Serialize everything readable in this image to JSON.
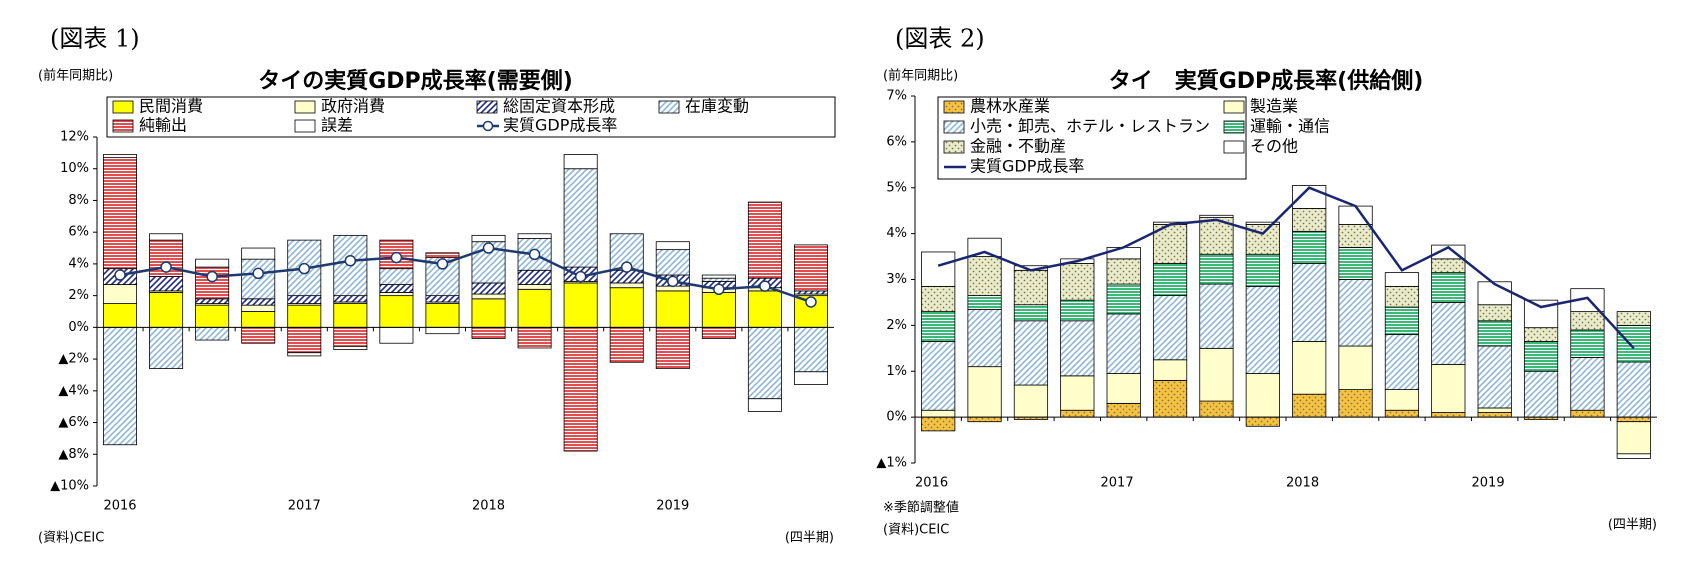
{
  "chart_data": [
    {
      "type": "bar",
      "stacked": true,
      "label": "(図表 1)",
      "y_unit_label": "(前年同期比)",
      "title": "タイの実質GDP成長率(需要側)",
      "source": "(資料)CEIC",
      "x_unit": "(四半期)",
      "categories": [
        "2016",
        null,
        null,
        null,
        "2017",
        null,
        null,
        null,
        "2018",
        null,
        null,
        null,
        "2019",
        null,
        null,
        null
      ],
      "ylim": [
        -10,
        12
      ],
      "yticks": [
        {
          "value": -10,
          "label": "▲10%"
        },
        {
          "value": -8,
          "label": "▲8%"
        },
        {
          "value": -6,
          "label": "▲6%"
        },
        {
          "value": -4,
          "label": "▲4%"
        },
        {
          "value": -2,
          "label": "▲2%"
        },
        {
          "value": 0,
          "label": "0%"
        },
        {
          "value": 2,
          "label": "2%"
        },
        {
          "value": 4,
          "label": "4%"
        },
        {
          "value": 6,
          "label": "6%"
        },
        {
          "value": 8,
          "label": "8%"
        },
        {
          "value": 10,
          "label": "10%"
        },
        {
          "value": 12,
          "label": "12%"
        }
      ],
      "series": [
        {
          "name": "民間消費",
          "color": "#ffff00",
          "pattern": "solid",
          "values": [
            1.5,
            2.2,
            1.4,
            1.0,
            1.4,
            1.5,
            2.0,
            1.5,
            1.8,
            2.4,
            2.8,
            2.5,
            2.3,
            2.2,
            2.3,
            2.0
          ]
        },
        {
          "name": "政府消費",
          "color": "#ffffcc",
          "pattern": "solid",
          "values": [
            1.2,
            0.1,
            0.1,
            0.4,
            0.1,
            0.1,
            0.2,
            0.1,
            0.3,
            0.3,
            0.1,
            0.3,
            0.3,
            0.3,
            0.2,
            0.1
          ]
        },
        {
          "name": "総固定資本形成",
          "color": "#1f2a8c",
          "pattern": "diagonal",
          "values": [
            1.0,
            0.9,
            0.3,
            0.4,
            0.5,
            0.4,
            0.5,
            0.4,
            0.7,
            0.9,
            0.9,
            0.8,
            0.7,
            0.4,
            0.6,
            0.2
          ]
        },
        {
          "name": "在庫変動",
          "color": "#8fb8dc",
          "pattern": "diagonal",
          "values": [
            -7.4,
            -2.6,
            -0.8,
            2.5,
            3.5,
            3.8,
            1.0,
            2.4,
            2.6,
            2.0,
            6.2,
            2.3,
            1.6,
            0.2,
            -4.5,
            -2.8
          ]
        },
        {
          "name": "純輸出",
          "color": "#e05050",
          "pattern": "horizontal",
          "values": [
            7.0,
            2.3,
            2.0,
            -1.0,
            -1.6,
            -1.2,
            1.8,
            0.3,
            -0.7,
            -1.3,
            -7.8,
            -2.2,
            -2.6,
            -0.7,
            4.8,
            2.9
          ]
        },
        {
          "name": "誤差",
          "color": "#ffffff",
          "pattern": "solid",
          "values": [
            0.2,
            0.4,
            0.5,
            0.7,
            -0.2,
            -0.2,
            -1.0,
            -0.4,
            0.4,
            0.3,
            0.9,
            0.0,
            0.5,
            0.2,
            -0.8,
            -0.8
          ]
        },
        {
          "name": "実質GDP成長率",
          "color": "#1f3a6e",
          "kind": "line",
          "markers": true,
          "values": [
            3.3,
            3.8,
            3.2,
            3.4,
            3.7,
            4.2,
            4.4,
            4.0,
            5.0,
            4.6,
            3.2,
            3.8,
            2.9,
            2.4,
            2.6,
            1.6
          ]
        }
      ]
    },
    {
      "type": "bar",
      "stacked": true,
      "label": "(図表 2)",
      "y_unit_label": "(前年同期比)",
      "title": "タイ　実質GDP成長率(供給側)",
      "note": "※季節調整値",
      "source": "(資料)CEIC",
      "x_unit": "(四半期)",
      "categories": [
        "2016",
        null,
        null,
        null,
        "2017",
        null,
        null,
        null,
        "2018",
        null,
        null,
        null,
        "2019",
        null,
        null,
        null
      ],
      "ylim": [
        -1,
        7
      ],
      "yticks": [
        {
          "value": -1,
          "label": "▲1%"
        },
        {
          "value": 0,
          "label": "0%"
        },
        {
          "value": 1,
          "label": "1%"
        },
        {
          "value": 2,
          "label": "2%"
        },
        {
          "value": 3,
          "label": "3%"
        },
        {
          "value": 4,
          "label": "4%"
        },
        {
          "value": 5,
          "label": "5%"
        },
        {
          "value": 6,
          "label": "6%"
        },
        {
          "value": 7,
          "label": "7%"
        }
      ],
      "series": [
        {
          "name": "農林水産業",
          "color": "#f5c242",
          "pattern": "dots",
          "values": [
            -0.3,
            -0.1,
            -0.05,
            0.15,
            0.3,
            0.8,
            0.35,
            -0.2,
            0.5,
            0.6,
            0.15,
            0.1,
            0.1,
            -0.05,
            0.15,
            -0.1
          ]
        },
        {
          "name": "製造業",
          "color": "#ffffcc",
          "pattern": "solid",
          "values": [
            0.15,
            1.1,
            0.7,
            0.75,
            0.65,
            0.45,
            1.15,
            0.95,
            1.15,
            0.95,
            0.45,
            1.05,
            0.1,
            0.0,
            0.0,
            -0.7
          ]
        },
        {
          "name": "小売・卸売、ホテル・レストラン",
          "color": "#8fb8dc",
          "pattern": "diagonal",
          "values": [
            1.5,
            1.25,
            1.4,
            1.2,
            1.3,
            1.4,
            1.4,
            1.9,
            1.7,
            1.45,
            1.2,
            1.35,
            1.35,
            1.0,
            1.15,
            1.2
          ]
        },
        {
          "name": "運輸・通信",
          "color": "#3cb878",
          "pattern": "horizontal",
          "values": [
            0.65,
            0.3,
            0.35,
            0.45,
            0.65,
            0.7,
            0.65,
            0.7,
            0.7,
            0.7,
            0.6,
            0.65,
            0.55,
            0.65,
            0.6,
            0.8
          ]
        },
        {
          "name": "金融・不動産",
          "color": "#e8eccc",
          "pattern": "dots",
          "values": [
            0.55,
            0.85,
            0.75,
            0.8,
            0.55,
            0.85,
            0.8,
            0.65,
            0.5,
            0.5,
            0.45,
            0.3,
            0.35,
            0.3,
            0.4,
            0.3
          ]
        },
        {
          "name": "その他",
          "color": "#ffffff",
          "pattern": "solid",
          "values": [
            0.75,
            0.4,
            0.1,
            0.1,
            0.25,
            0.05,
            0.05,
            0.05,
            0.5,
            0.4,
            0.3,
            0.3,
            0.5,
            0.6,
            0.5,
            -0.1
          ]
        },
        {
          "name": "実質GDP成長率",
          "color": "#1a2670",
          "kind": "line",
          "markers": false,
          "values": [
            3.3,
            3.6,
            3.2,
            3.4,
            3.7,
            4.2,
            4.3,
            4.0,
            5.0,
            4.6,
            3.2,
            3.7,
            2.9,
            2.4,
            2.6,
            1.5
          ]
        }
      ]
    }
  ]
}
